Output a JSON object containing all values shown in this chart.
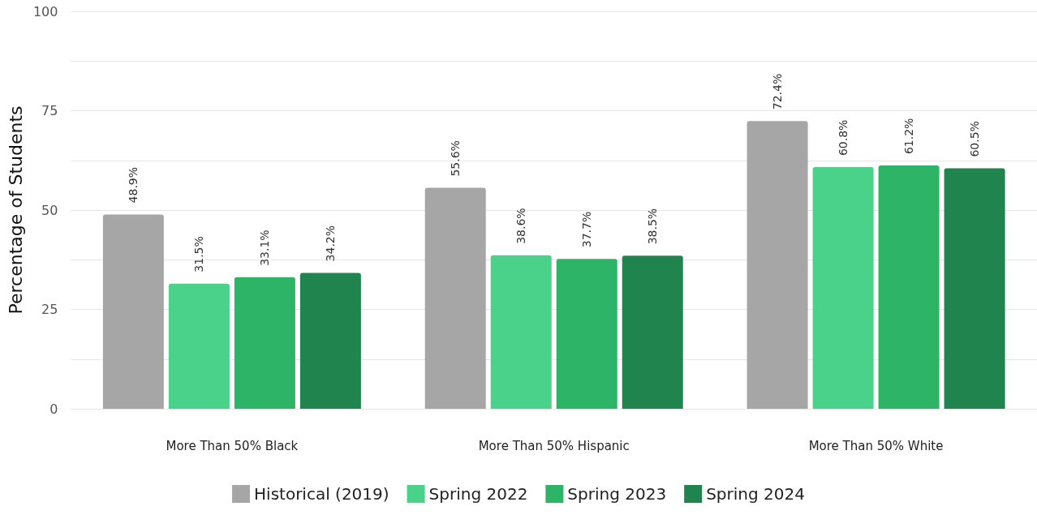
{
  "chart_data": {
    "type": "bar",
    "ylabel": "Percentage of Students",
    "categories": [
      "More Than 50% Black",
      "More Than 50% Hispanic",
      "More Than 50% White"
    ],
    "series": [
      {
        "name": "Historical (2019)",
        "color": "#a6a6a6",
        "values": [
          48.9,
          55.6,
          72.4
        ],
        "value_labels": [
          "48.9%",
          "55.6%",
          "72.4%"
        ]
      },
      {
        "name": "Spring 2022",
        "color": "#4bd28a",
        "values": [
          31.5,
          38.6,
          60.8
        ],
        "value_labels": [
          "31.5%",
          "38.6%",
          "60.8%"
        ]
      },
      {
        "name": "Spring 2023",
        "color": "#2db467",
        "values": [
          33.1,
          37.7,
          61.2
        ],
        "value_labels": [
          "33.1%",
          "37.7%",
          "61.2%"
        ]
      },
      {
        "name": "Spring 2024",
        "color": "#1f844d",
        "values": [
          34.2,
          38.5,
          60.5
        ],
        "value_labels": [
          "34.2%",
          "38.5%",
          "60.5%"
        ]
      }
    ],
    "ylim": [
      0,
      100
    ],
    "yticks": [
      0,
      {
        "value": 12.5,
        "label": null
      },
      25,
      {
        "value": 37.5,
        "label": null
      },
      50,
      {
        "value": 62.5,
        "label": null
      },
      75,
      {
        "value": 87.5,
        "label": null
      },
      100
    ],
    "grid": "y",
    "legend": "bottom"
  }
}
